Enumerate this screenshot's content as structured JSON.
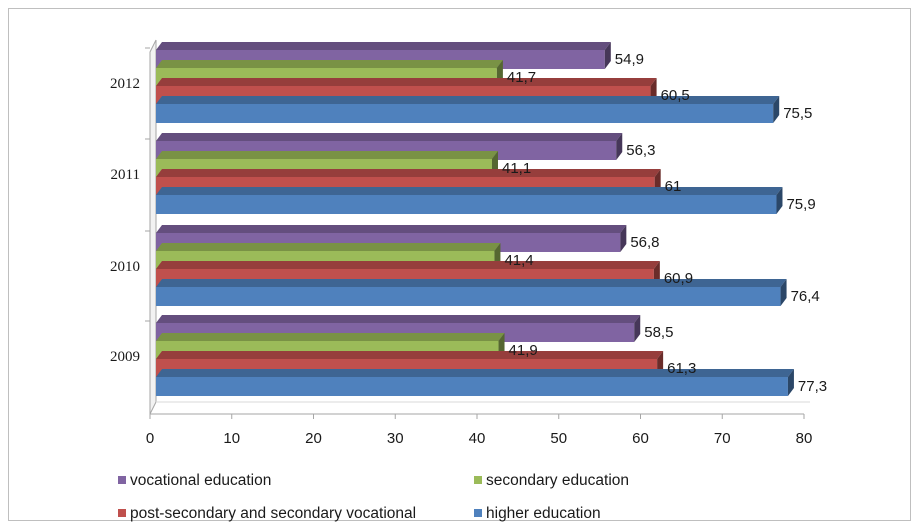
{
  "chart_data": {
    "type": "bar",
    "orientation": "horizontal",
    "categories": [
      "2009",
      "2010",
      "2011",
      "2012"
    ],
    "series": [
      {
        "name": "vocational education",
        "color": "#8064a2",
        "values": [
          58.5,
          56.8,
          56.3,
          54.9
        ],
        "labels": [
          "58,5",
          "56,8",
          "56,3",
          "54,9"
        ]
      },
      {
        "name": "secondary education",
        "color": "#9bbb59",
        "values": [
          41.9,
          41.4,
          41.1,
          41.7
        ],
        "labels": [
          "41,9",
          "41,4",
          "41,1",
          "41,7"
        ]
      },
      {
        "name": "post-secondary and secondary vocational",
        "color": "#c0504d",
        "values": [
          61.3,
          60.9,
          61,
          60.5
        ],
        "labels": [
          "61,3",
          "60,9",
          "61",
          "60,5"
        ]
      },
      {
        "name": "higher education",
        "color": "#4f81bd",
        "values": [
          77.3,
          76.4,
          75.9,
          75.5
        ],
        "labels": [
          "77,3",
          "76,4",
          "75,9",
          "75,5"
        ]
      }
    ],
    "xlim": [
      0,
      80
    ],
    "xticks": [
      "0",
      "10",
      "20",
      "30",
      "40",
      "50",
      "60",
      "70",
      "80"
    ],
    "grid": false,
    "legend_position": "bottom",
    "style": "3d"
  }
}
